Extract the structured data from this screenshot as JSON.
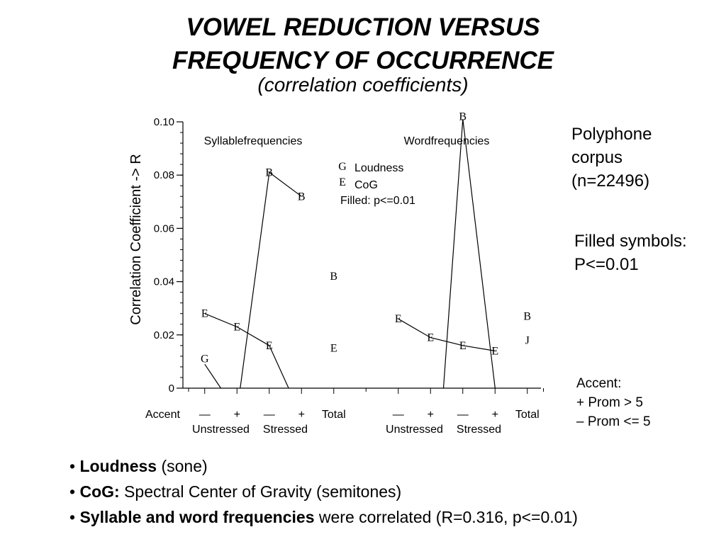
{
  "slide": {
    "title_line1": "VOWEL REDUCTION VERSUS",
    "title_line2": "FREQUENCY OF OCCURRENCE",
    "subtitle": "(correlation coefficients)"
  },
  "side_notes": {
    "corpus": [
      "Polyphone",
      "corpus",
      "(n=22496)"
    ],
    "filled": [
      "Filled symbols:",
      "P<=0.01"
    ],
    "accent": [
      "Accent:",
      "+ Prom > 5",
      "– Prom <= 5"
    ]
  },
  "bullets": [
    {
      "bold": "Loudness",
      "rest": " (sone)"
    },
    {
      "bold": "CoG:",
      "rest": " Spectral Center of Gravity (semitones)"
    },
    {
      "bold": "Syllable and word frequencies",
      "rest": " were correlated (R=0.316, p<=0.01)"
    }
  ],
  "chart_data": {
    "type": "scatter",
    "ylabel": "Correlation Coefficient -> R",
    "ylim": [
      0,
      0.1
    ],
    "y_ticks": [
      {
        "value": 0,
        "label": "0"
      },
      {
        "value": 0.02,
        "label": "0.02"
      },
      {
        "value": 0.04,
        "label": "0.04"
      },
      {
        "value": 0.06,
        "label": "0.06"
      },
      {
        "value": 0.08,
        "label": "0.08"
      },
      {
        "value": 0.1,
        "label": "0.10"
      }
    ],
    "x_positions": [
      1,
      2,
      3,
      4,
      5,
      7,
      8,
      9,
      10,
      11
    ],
    "xlim": [
      0,
      11.5
    ],
    "x_tick_labels": [
      "—",
      "+",
      "—",
      "+",
      "Total",
      "—",
      "+",
      "—",
      "+",
      "Total"
    ],
    "accent_label": "Accent",
    "x_group_labels": [
      {
        "text": "Unstressed",
        "x": 1.5
      },
      {
        "text": "Stressed",
        "x": 3.5
      },
      {
        "text": "Unstressed",
        "x": 7.5
      },
      {
        "text": "Stressed",
        "x": 9.5
      }
    ],
    "panel_labels": [
      {
        "text": "Syllablefrequencies",
        "x": 2.5
      },
      {
        "text": "Wordfrequencies",
        "x": 8.5
      }
    ],
    "legend": {
      "entries": [
        {
          "symbol": "G",
          "label": "Loudness"
        },
        {
          "symbol": "E",
          "label": "CoG"
        }
      ],
      "note": "Filled: p<=0.01"
    },
    "series": [
      {
        "symbol": "G",
        "values": [
          {
            "x": 1,
            "y": 0.011
          }
        ]
      },
      {
        "symbol": "E",
        "values": [
          {
            "x": 1,
            "y": 0.028
          },
          {
            "x": 2,
            "y": 0.023
          },
          {
            "x": 3,
            "y": 0.016
          },
          {
            "x": 5,
            "y": 0.015
          },
          {
            "x": 7,
            "y": 0.026
          },
          {
            "x": 8,
            "y": 0.019
          },
          {
            "x": 9,
            "y": 0.016
          },
          {
            "x": 10,
            "y": 0.014
          }
        ]
      },
      {
        "symbol": "B",
        "values": [
          {
            "x": 3,
            "y": 0.081
          },
          {
            "x": 4,
            "y": 0.072
          },
          {
            "x": 5,
            "y": 0.042
          },
          {
            "x": 9,
            "y": 0.102
          },
          {
            "x": 11,
            "y": 0.027
          }
        ]
      },
      {
        "symbol": "J",
        "values": [
          {
            "x": 11,
            "y": 0.018
          }
        ]
      }
    ],
    "lines": [
      {
        "points": [
          [
            1,
            0.028
          ],
          [
            2,
            0.023
          ],
          [
            3,
            0.016
          ]
        ]
      },
      {
        "points": [
          [
            3,
            0.016
          ],
          [
            3.6,
            0
          ]
        ]
      },
      {
        "points": [
          [
            1,
            0.009
          ],
          [
            1.5,
            0
          ]
        ]
      },
      {
        "points": [
          [
            2.1,
            0
          ],
          [
            3,
            0.081
          ],
          [
            4,
            0.072
          ]
        ]
      },
      {
        "points": [
          [
            7,
            0.026
          ],
          [
            8,
            0.019
          ],
          [
            9,
            0.016
          ],
          [
            10,
            0.014
          ]
        ]
      },
      {
        "points": [
          [
            8.4,
            0
          ],
          [
            9,
            0.101
          ],
          [
            10,
            0
          ]
        ]
      }
    ]
  }
}
